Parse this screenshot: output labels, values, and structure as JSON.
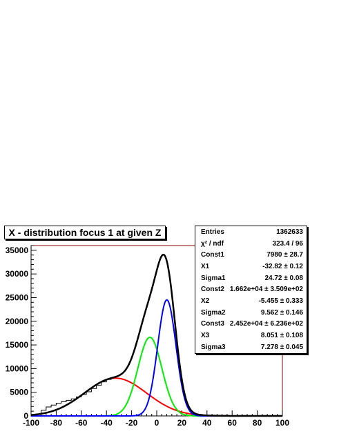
{
  "title": "X - distribution focus 1 at given Z",
  "stats": [
    {
      "label": "Entries",
      "value": "1362633"
    },
    {
      "label": "χ² / ndf",
      "value": "323.4 / 96"
    },
    {
      "label": "Const1",
      "value": "7980 ± 28.7"
    },
    {
      "label": "X1",
      "value": "-32.82 ± 0.12"
    },
    {
      "label": "Sigma1",
      "value": "24.72 ± 0.08"
    },
    {
      "label": "Const2",
      "value": "1.662e+04 ± 3.509e+02"
    },
    {
      "label": "X2",
      "value": "-5.455 ± 0.333"
    },
    {
      "label": "Sigma2",
      "value": "9.562 ± 0.146"
    },
    {
      "label": "Const3",
      "value": "2.452e+04 ± 6.236e+02"
    },
    {
      "label": "X3",
      "value": "8.051 ± 0.108"
    },
    {
      "label": "Sigma3",
      "value": "7.278 ± 0.045"
    }
  ],
  "colors": {
    "total": "#000000",
    "gauss1": "#ff0000",
    "gauss2": "#00ee00",
    "gauss3": "#0000ff",
    "histogram": "#000000",
    "frame": "#8b0000"
  },
  "chart_data": {
    "type": "line",
    "xlim": [
      -100,
      100
    ],
    "ylim": [
      0,
      36000
    ],
    "x_ticks": [
      -100,
      -80,
      -60,
      -40,
      -20,
      0,
      20,
      40,
      60,
      80,
      100
    ],
    "y_ticks": [
      0,
      5000,
      10000,
      15000,
      20000,
      25000,
      30000,
      35000
    ],
    "grid": false,
    "series": [
      {
        "component": "gauss1",
        "const": 7980,
        "mean": -32.82,
        "sigma": 24.72
      },
      {
        "component": "gauss2",
        "const": 16620,
        "mean": -5.455,
        "sigma": 9.562
      },
      {
        "component": "gauss3",
        "const": 24520,
        "mean": 8.051,
        "sigma": 7.278
      }
    ],
    "histogram": {
      "x": [
        -96,
        -92,
        -88,
        -84,
        -80,
        -76,
        -72,
        -68,
        -64,
        -60,
        -56,
        -52,
        -48,
        -44,
        -40
      ],
      "y": [
        300,
        1200,
        1900,
        2300,
        2700,
        3000,
        3300,
        3600,
        4000,
        4500,
        5100,
        5800,
        6500,
        7200,
        7700
      ]
    }
  }
}
